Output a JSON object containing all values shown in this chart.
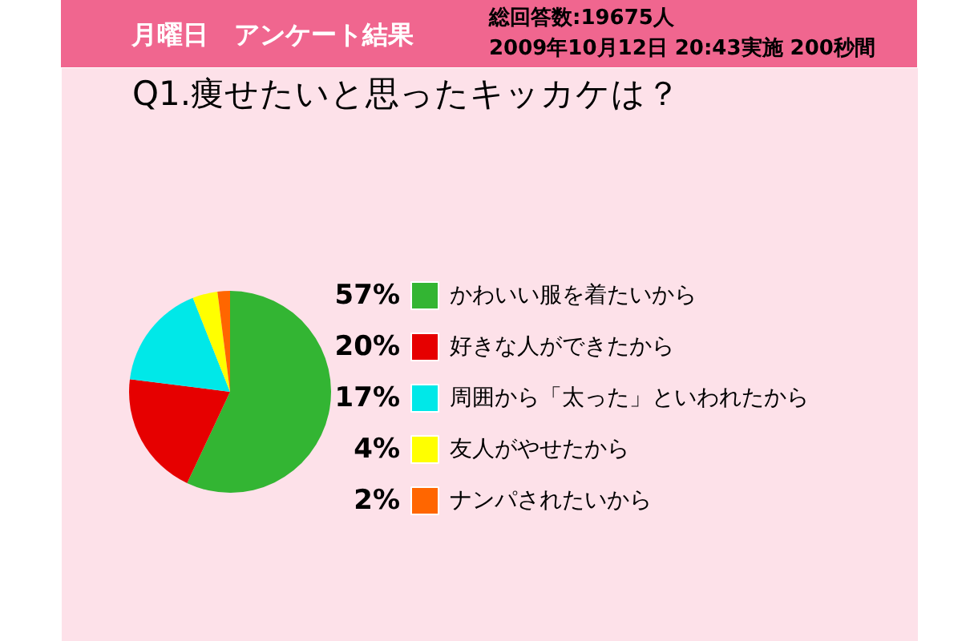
{
  "chart_data": {
    "type": "pie",
    "title": "Q1.痩せたいと思ったキッカケは？",
    "annotations": [
      "月曜日　アンケート結果",
      "総回答数:19675人",
      "2009年10月12日 20:43実施 200秒間"
    ],
    "categories": [
      "かわいい服を着たいから",
      "好きな人ができたから",
      "周囲から「太った」といわれたから",
      "友人がやせたから",
      "ナンパされたいから"
    ],
    "values": [
      57,
      20,
      17,
      4,
      2
    ],
    "value_labels": [
      "57%",
      "20%",
      "17%",
      "4%",
      "2%"
    ],
    "colors": [
      "#33b533",
      "#e60000",
      "#00e8e8",
      "#ffff00",
      "#ff6600"
    ],
    "legend": "right"
  }
}
